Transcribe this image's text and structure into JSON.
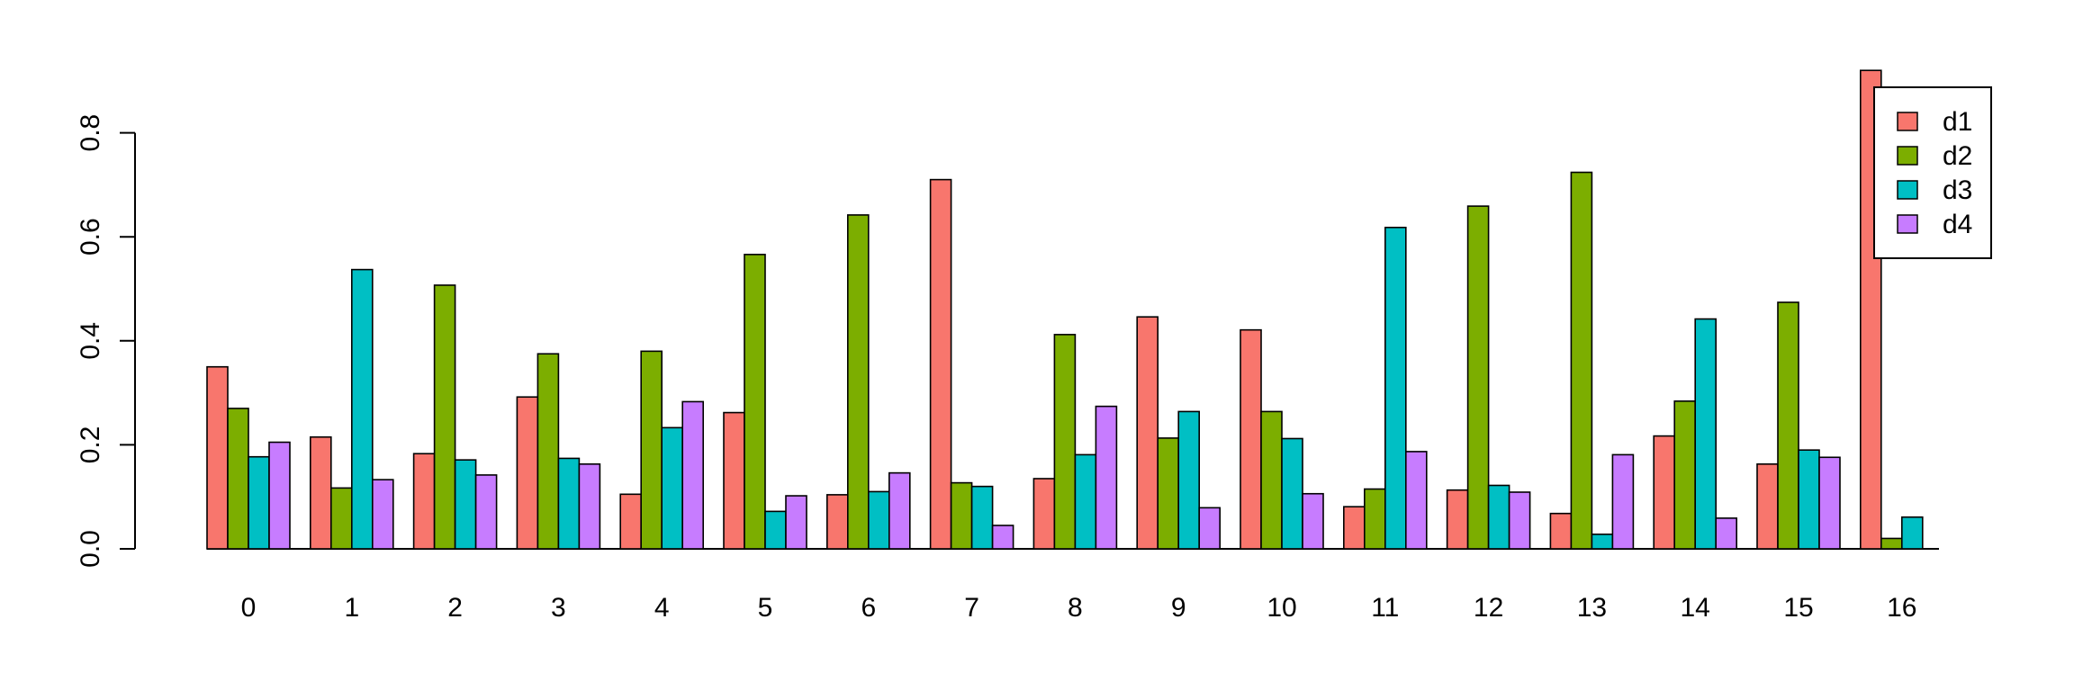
{
  "chart_data": {
    "type": "bar",
    "title": "",
    "xlabel": "",
    "ylabel": "",
    "categories": [
      "0",
      "1",
      "2",
      "3",
      "4",
      "5",
      "6",
      "7",
      "8",
      "9",
      "10",
      "11",
      "12",
      "13",
      "14",
      "15",
      "16"
    ],
    "ylim": [
      0,
      0.9
    ],
    "yticks": [
      "0.0",
      "0.2",
      "0.4",
      "0.6",
      "0.8"
    ],
    "ytick_values": [
      0,
      0.2,
      0.4,
      0.6,
      0.8
    ],
    "grid": false,
    "legend_position": "top-right",
    "series": [
      {
        "name": "d1",
        "color": "#F8766D",
        "values": [
          0.35,
          0.215,
          0.183,
          0.292,
          0.105,
          0.262,
          0.104,
          0.71,
          0.135,
          0.446,
          0.421,
          0.081,
          0.113,
          0.068,
          0.217,
          0.163,
          0.92
        ]
      },
      {
        "name": "d2",
        "color": "#7CAE00",
        "values": [
          0.27,
          0.117,
          0.507,
          0.375,
          0.38,
          0.566,
          0.642,
          0.127,
          0.412,
          0.213,
          0.264,
          0.115,
          0.659,
          0.724,
          0.284,
          0.474,
          0.02
        ]
      },
      {
        "name": "d3",
        "color": "#00BFC4",
        "values": [
          0.177,
          0.537,
          0.171,
          0.174,
          0.233,
          0.072,
          0.11,
          0.12,
          0.181,
          0.264,
          0.212,
          0.618,
          0.122,
          0.028,
          0.442,
          0.19,
          0.061
        ]
      },
      {
        "name": "d4",
        "color": "#C77CFF",
        "values": [
          0.205,
          0.133,
          0.142,
          0.163,
          0.283,
          0.102,
          0.146,
          0.045,
          0.274,
          0.079,
          0.106,
          0.187,
          0.109,
          0.181,
          0.059,
          0.176,
          0.0
        ]
      }
    ]
  }
}
